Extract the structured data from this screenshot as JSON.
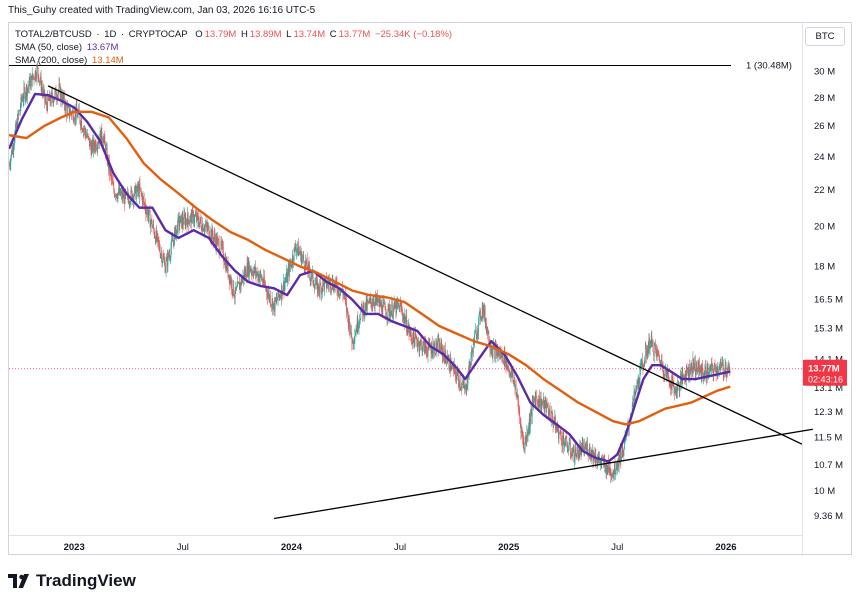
{
  "header": {
    "author": "This_Guhy",
    "created_with": "created with TradingView.com,",
    "timestamp": "Jan 03, 2026 16:16 UTC-5"
  },
  "legend": {
    "symbol": "TOTAL2/BTCUSD",
    "interval": "1D",
    "exchange": "CRYPTOCAP",
    "open_label": "O",
    "open": "13.79M",
    "high_label": "H",
    "high": "13.89M",
    "low_label": "L",
    "low": "13.74M",
    "close_label": "C",
    "close": "13.77M",
    "change": "−25.34K (−0.18%)",
    "sma50_label": "SMA (50, close)",
    "sma50_value": "13.67M",
    "sma200_label": "SMA (200, close)",
    "sma200_value": "13.14M"
  },
  "currency_badge": "BTC",
  "brand": {
    "name": "TradingView"
  },
  "colors": {
    "up": "#26a69a",
    "down": "#ef5350",
    "sma50": "#5b2aa6",
    "sma200": "#e25f10",
    "price_tag": "#f23645",
    "trendline": "#000000"
  },
  "chart_data": {
    "type": "candlestick",
    "y_scale": "log",
    "y_range": [
      9.0,
      31.5
    ],
    "x_range": [
      2022.7,
      2026.35
    ],
    "y_tick_labels": [
      "30 M",
      "28 M",
      "26 M",
      "24 M",
      "22 M",
      "20 M",
      "18 M",
      "16.5 M",
      "15.3 M",
      "14.1 M",
      "13.1 M",
      "12.3 M",
      "11.5 M",
      "10.7 M",
      "10 M",
      "9.36 M"
    ],
    "y_tick_values": [
      30,
      28,
      26,
      24,
      22,
      20,
      18,
      16.5,
      15.3,
      14.1,
      13.1,
      12.3,
      11.5,
      10.7,
      10,
      9.36
    ],
    "x_tick_labels": [
      "2023",
      "Jul",
      "2024",
      "Jul",
      "2025",
      "Jul",
      "2026"
    ],
    "x_tick_values": [
      2023.0,
      2023.5,
      2024.0,
      2024.5,
      2025.0,
      2025.5,
      2026.0
    ],
    "price_path": [
      [
        2022.7,
        23.5
      ],
      [
        2022.76,
        28.0
      ],
      [
        2022.83,
        30.2
      ],
      [
        2022.87,
        27.5
      ],
      [
        2022.93,
        28.6
      ],
      [
        2022.97,
        27.0
      ],
      [
        2023.02,
        26.8
      ],
      [
        2023.08,
        24.5
      ],
      [
        2023.13,
        25.5
      ],
      [
        2023.18,
        22.0
      ],
      [
        2023.24,
        21.5
      ],
      [
        2023.3,
        22.0
      ],
      [
        2023.36,
        20.0
      ],
      [
        2023.42,
        18.0
      ],
      [
        2023.48,
        20.2
      ],
      [
        2023.55,
        20.5
      ],
      [
        2023.62,
        19.8
      ],
      [
        2023.68,
        18.8
      ],
      [
        2023.74,
        16.7
      ],
      [
        2023.8,
        18.0
      ],
      [
        2023.86,
        17.5
      ],
      [
        2023.92,
        16.2
      ],
      [
        2023.98,
        17.5
      ],
      [
        2024.02,
        19.0
      ],
      [
        2024.06,
        18.2
      ],
      [
        2024.12,
        17.0
      ],
      [
        2024.18,
        17.3
      ],
      [
        2024.24,
        16.8
      ],
      [
        2024.28,
        14.8
      ],
      [
        2024.32,
        16.0
      ],
      [
        2024.38,
        16.5
      ],
      [
        2024.44,
        16.0
      ],
      [
        2024.5,
        16.2
      ],
      [
        2024.55,
        15.0
      ],
      [
        2024.62,
        14.5
      ],
      [
        2024.68,
        14.6
      ],
      [
        2024.74,
        13.8
      ],
      [
        2024.8,
        13.0
      ],
      [
        2024.84,
        14.8
      ],
      [
        2024.88,
        16.2
      ],
      [
        2024.92,
        14.5
      ],
      [
        2024.98,
        14.2
      ],
      [
        2025.03,
        13.2
      ],
      [
        2025.07,
        11.2
      ],
      [
        2025.12,
        12.8
      ],
      [
        2025.18,
        12.4
      ],
      [
        2025.24,
        11.5
      ],
      [
        2025.3,
        11.0
      ],
      [
        2025.36,
        11.2
      ],
      [
        2025.42,
        10.8
      ],
      [
        2025.48,
        10.5
      ],
      [
        2025.53,
        11.2
      ],
      [
        2025.57,
        12.5
      ],
      [
        2025.61,
        13.8
      ],
      [
        2025.65,
        14.8
      ],
      [
        2025.69,
        14.2
      ],
      [
        2025.73,
        13.5
      ],
      [
        2025.77,
        13.0
      ],
      [
        2025.81,
        13.6
      ],
      [
        2025.85,
        13.9
      ],
      [
        2025.9,
        13.6
      ],
      [
        2025.96,
        13.8
      ],
      [
        2026.02,
        13.77
      ]
    ],
    "series": [
      {
        "name": "SMA (50, close)",
        "points": [
          [
            2022.7,
            24.5
          ],
          [
            2022.76,
            26.5
          ],
          [
            2022.82,
            28.3
          ],
          [
            2022.88,
            28.2
          ],
          [
            2022.94,
            27.8
          ],
          [
            2023.0,
            27.3
          ],
          [
            2023.06,
            26.3
          ],
          [
            2023.12,
            25.0
          ],
          [
            2023.18,
            23.0
          ],
          [
            2023.24,
            21.8
          ],
          [
            2023.3,
            21.0
          ],
          [
            2023.36,
            21.0
          ],
          [
            2023.42,
            19.8
          ],
          [
            2023.48,
            19.4
          ],
          [
            2023.55,
            19.8
          ],
          [
            2023.62,
            19.4
          ],
          [
            2023.68,
            18.5
          ],
          [
            2023.74,
            17.8
          ],
          [
            2023.8,
            17.3
          ],
          [
            2023.86,
            17.1
          ],
          [
            2023.92,
            17.0
          ],
          [
            2023.98,
            16.7
          ],
          [
            2024.04,
            17.6
          ],
          [
            2024.1,
            17.8
          ],
          [
            2024.16,
            17.3
          ],
          [
            2024.22,
            17.0
          ],
          [
            2024.28,
            16.5
          ],
          [
            2024.34,
            15.9
          ],
          [
            2024.4,
            15.9
          ],
          [
            2024.46,
            15.6
          ],
          [
            2024.52,
            15.4
          ],
          [
            2024.58,
            15.2
          ],
          [
            2024.64,
            14.6
          ],
          [
            2024.7,
            14.3
          ],
          [
            2024.76,
            13.8
          ],
          [
            2024.8,
            13.4
          ],
          [
            2024.86,
            14.1
          ],
          [
            2024.92,
            14.8
          ],
          [
            2024.98,
            14.3
          ],
          [
            2025.04,
            13.5
          ],
          [
            2025.1,
            12.6
          ],
          [
            2025.16,
            12.2
          ],
          [
            2025.22,
            11.9
          ],
          [
            2025.28,
            11.6
          ],
          [
            2025.34,
            11.1
          ],
          [
            2025.4,
            10.9
          ],
          [
            2025.46,
            10.8
          ],
          [
            2025.5,
            11.0
          ],
          [
            2025.54,
            11.6
          ],
          [
            2025.58,
            12.5
          ],
          [
            2025.62,
            13.4
          ],
          [
            2025.66,
            13.9
          ],
          [
            2025.7,
            13.9
          ],
          [
            2025.74,
            13.7
          ],
          [
            2025.8,
            13.4
          ],
          [
            2025.86,
            13.4
          ],
          [
            2025.92,
            13.5
          ],
          [
            2025.98,
            13.6
          ],
          [
            2026.02,
            13.67
          ]
        ]
      },
      {
        "name": "SMA (200, close)",
        "points": [
          [
            2022.7,
            25.4
          ],
          [
            2022.78,
            25.2
          ],
          [
            2022.86,
            26.0
          ],
          [
            2022.94,
            26.6
          ],
          [
            2023.0,
            27.0
          ],
          [
            2023.08,
            27.0
          ],
          [
            2023.16,
            26.6
          ],
          [
            2023.24,
            25.2
          ],
          [
            2023.32,
            23.6
          ],
          [
            2023.4,
            22.6
          ],
          [
            2023.48,
            21.8
          ],
          [
            2023.56,
            21.0
          ],
          [
            2023.64,
            20.3
          ],
          [
            2023.72,
            19.7
          ],
          [
            2023.8,
            19.3
          ],
          [
            2023.88,
            18.8
          ],
          [
            2023.96,
            18.4
          ],
          [
            2024.04,
            18.0
          ],
          [
            2024.12,
            17.7
          ],
          [
            2024.2,
            17.3
          ],
          [
            2024.28,
            16.9
          ],
          [
            2024.36,
            16.7
          ],
          [
            2024.44,
            16.6
          ],
          [
            2024.52,
            16.4
          ],
          [
            2024.6,
            15.9
          ],
          [
            2024.68,
            15.4
          ],
          [
            2024.76,
            15.1
          ],
          [
            2024.84,
            14.8
          ],
          [
            2024.92,
            14.6
          ],
          [
            2025.0,
            14.3
          ],
          [
            2025.08,
            13.9
          ],
          [
            2025.16,
            13.4
          ],
          [
            2025.24,
            13.0
          ],
          [
            2025.32,
            12.6
          ],
          [
            2025.4,
            12.3
          ],
          [
            2025.48,
            12.0
          ],
          [
            2025.54,
            11.9
          ],
          [
            2025.6,
            12.0
          ],
          [
            2025.66,
            12.2
          ],
          [
            2025.72,
            12.4
          ],
          [
            2025.78,
            12.5
          ],
          [
            2025.84,
            12.6
          ],
          [
            2025.9,
            12.8
          ],
          [
            2025.96,
            13.0
          ],
          [
            2026.02,
            13.14
          ]
        ]
      }
    ],
    "trendlines": [
      {
        "from": [
          2022.88,
          28.9
        ],
        "to": [
          2026.35,
          11.3
        ]
      },
      {
        "from": [
          2023.92,
          9.3
        ],
        "to": [
          2026.4,
          11.75
        ]
      }
    ],
    "horizontal_line": {
      "value": 30.48,
      "label": "1 (30.48M)"
    },
    "last_price": {
      "value": 13.77,
      "label": "13.77M",
      "countdown": "02:43:16"
    }
  }
}
